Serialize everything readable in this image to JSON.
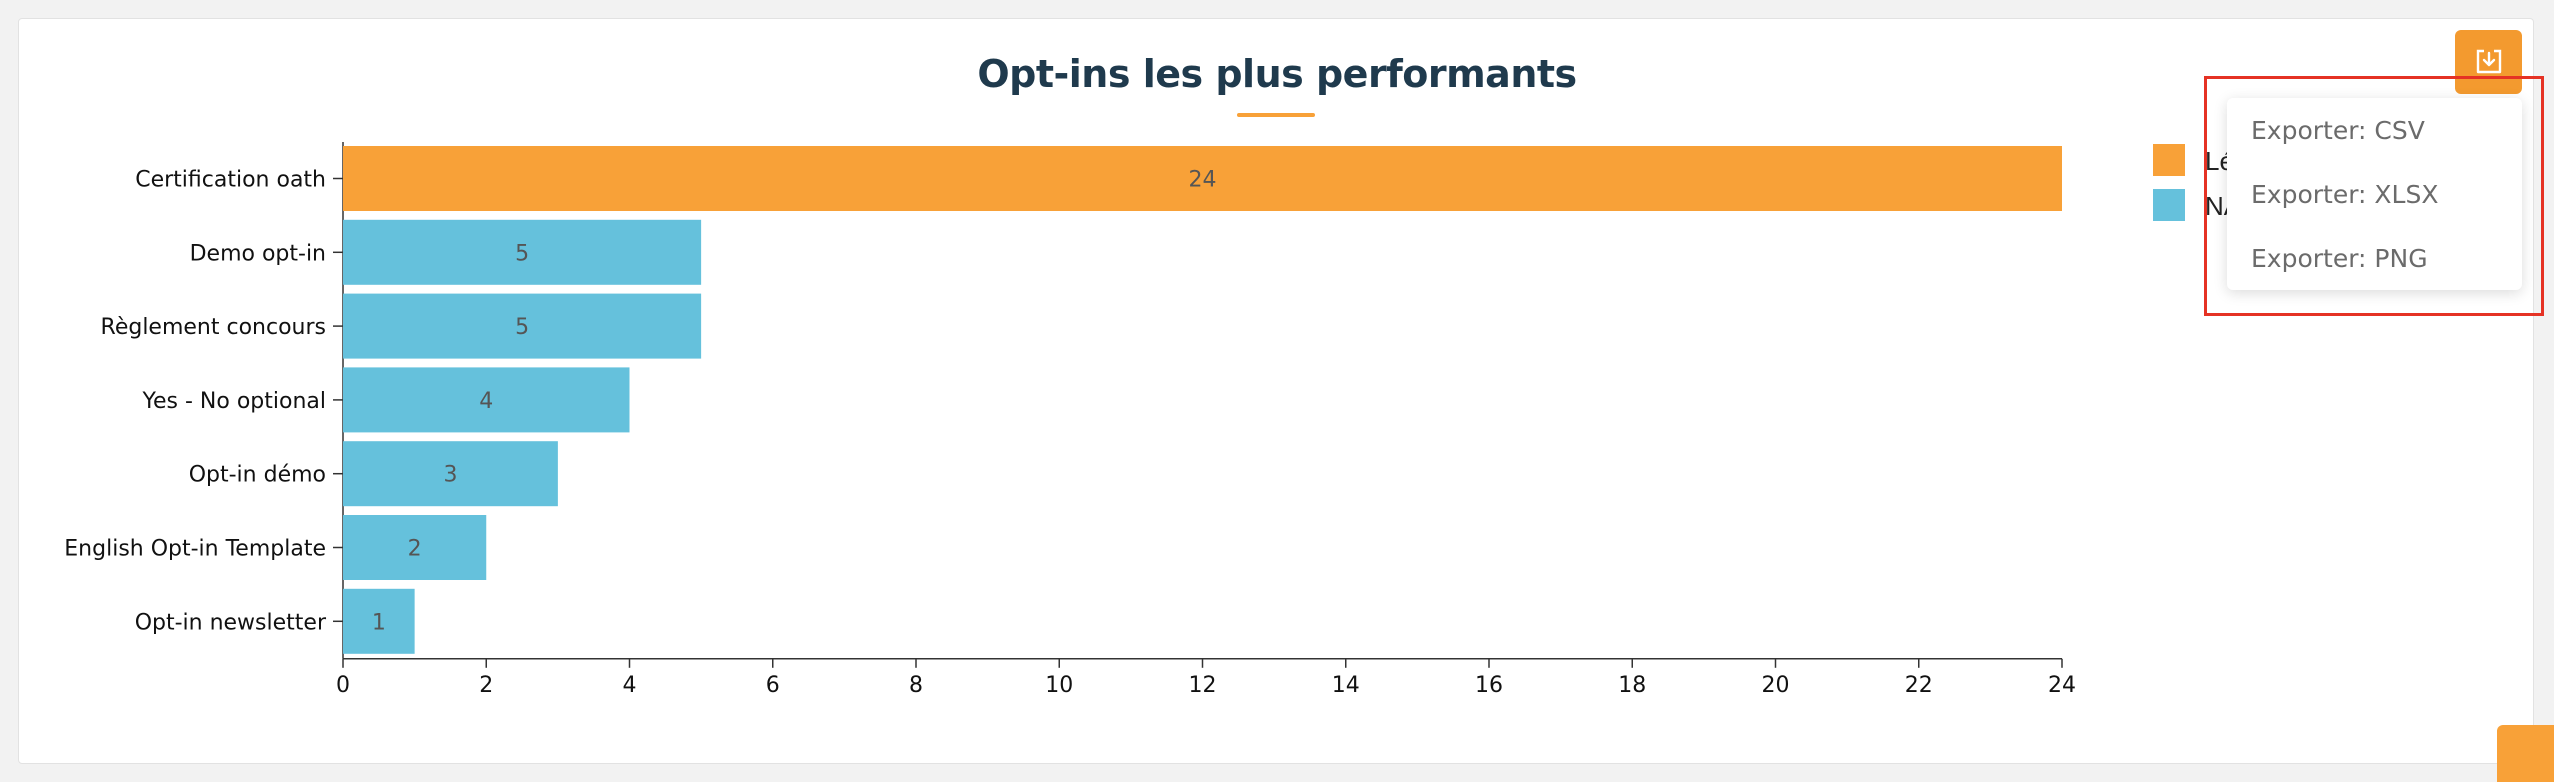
{
  "chart_data": {
    "type": "bar",
    "orientation": "horizontal",
    "title": "Opt-ins les plus performants",
    "categories": [
      "Certification oath",
      "Demo opt-in",
      "Règlement concours",
      "Yes - No optional",
      "Opt-in démo",
      "English Opt-in Template",
      "Opt-in newsletter"
    ],
    "values": [
      24,
      5,
      5,
      4,
      3,
      2,
      1
    ],
    "bar_colors": [
      "#f8a138",
      "#65c1dc",
      "#65c1dc",
      "#65c1dc",
      "#65c1dc",
      "#65c1dc",
      "#65c1dc"
    ],
    "xlim": [
      0,
      24
    ],
    "x_ticks": [
      0,
      2,
      4,
      6,
      8,
      10,
      12,
      14,
      16,
      18,
      20,
      22,
      24
    ],
    "xlabel": "",
    "ylabel": "",
    "data_labels": true,
    "grid": false,
    "legend_position": "top-right",
    "legend": [
      {
        "label": "Lé",
        "color": "#f8a138"
      },
      {
        "label": "NA",
        "color": "#65c1dc"
      }
    ]
  },
  "export_menu": {
    "items": [
      "Exporter: CSV",
      "Exporter: XLSX",
      "Exporter: PNG"
    ]
  },
  "colors": {
    "accent": "#f39a2f",
    "title": "#1f3a4d",
    "highlight": "#e53224"
  }
}
